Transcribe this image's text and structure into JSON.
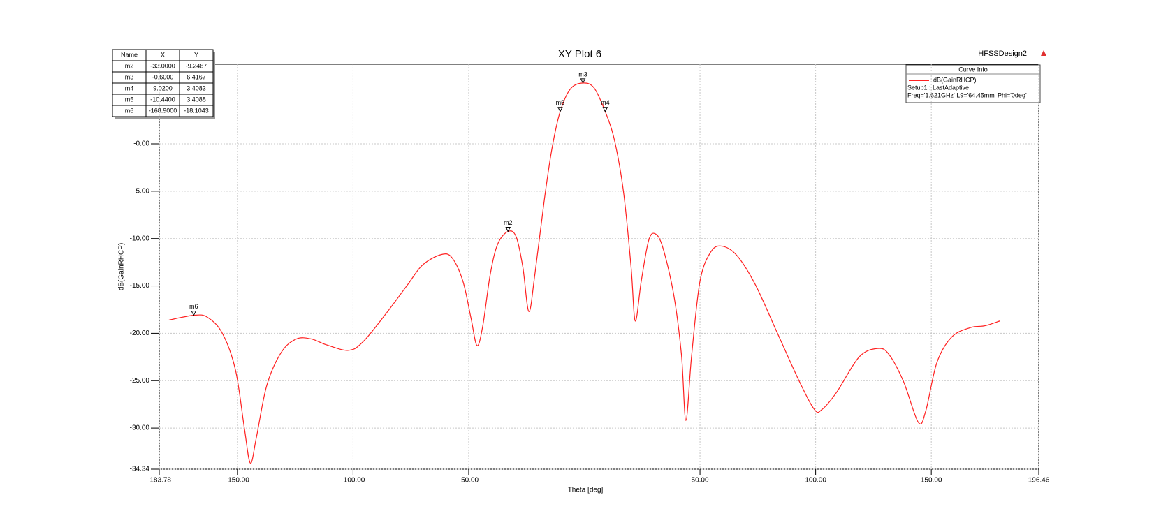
{
  "chart_data": {
    "type": "line",
    "title": "XY Plot 6",
    "design": "HFSSDesign2",
    "xlabel": "Theta [deg]",
    "ylabel": "dB(GainRHCP)",
    "xlim": [
      -183.78,
      196.46
    ],
    "ylim": [
      -34.34,
      8.4
    ],
    "xticks": [
      -183.78,
      {
        "value": -150,
        "label": "-150.00"
      },
      {
        "value": -100,
        "label": "-100.00"
      },
      {
        "value": -50,
        "label": "-50.00"
      },
      {
        "value": 50,
        "label": "50.00"
      },
      {
        "value": 100,
        "label": "100.00"
      },
      {
        "value": 150,
        "label": "150.00"
      },
      196.46
    ],
    "yticks": [
      -34.34,
      {
        "value": -30,
        "label": "-30.00"
      },
      {
        "value": -25,
        "label": "-25.00"
      },
      {
        "value": -20,
        "label": "-20.00"
      },
      {
        "value": -15,
        "label": "-15.00"
      },
      {
        "value": -10,
        "label": "-10.00"
      },
      {
        "value": -5,
        "label": "-5.00"
      },
      {
        "value": 0,
        "label": "-0.00"
      }
    ],
    "grid": true,
    "x": [
      -179.6,
      -168.9,
      -163,
      -156.5,
      -150.8,
      -147,
      -144.4,
      -141.8,
      -137.3,
      -131,
      -124.5,
      -118,
      -111.7,
      -102,
      -95.7,
      -86,
      -76.5,
      -70,
      -62,
      -57.3,
      -52.5,
      -49,
      -46.4,
      -43.9,
      -40.7,
      -37.5,
      -33,
      -29.5,
      -26.6,
      -24,
      -21.4,
      -17.3,
      -14,
      -10.44,
      -6,
      -0.6,
      4.2,
      9.02,
      13.1,
      17,
      20.2,
      22,
      24.6,
      27.8,
      30.7,
      34,
      38.7,
      42,
      43.9,
      46.4,
      50,
      54.7,
      59.5,
      66,
      74,
      83.5,
      93,
      99.5,
      102.7,
      109,
      118.8,
      126.8,
      131.6,
      138,
      144.4,
      147.6,
      152.4,
      158.8,
      166.8,
      173.2,
      179.6
    ],
    "series": [
      {
        "name": "dB(GainRHCP)",
        "color": "#ff2020",
        "values": [
          -18.6,
          -18.1,
          -18.3,
          -20,
          -23.9,
          -30,
          -33.7,
          -31,
          -25.5,
          -22,
          -20.6,
          -20.6,
          -21.2,
          -21.8,
          -20.9,
          -18,
          -14.9,
          -12.8,
          -11.7,
          -12,
          -14.5,
          -18.4,
          -21.3,
          -19.2,
          -13.8,
          -10.6,
          -9.25,
          -9.8,
          -13,
          -17.7,
          -13.8,
          -5.9,
          -0.5,
          3.41,
          5.8,
          6.42,
          5.9,
          3.41,
          0.3,
          -5.2,
          -13,
          -18.7,
          -14.5,
          -10.2,
          -9.5,
          -11,
          -16,
          -22.3,
          -29.2,
          -22.3,
          -14.5,
          -11.4,
          -10.8,
          -11.8,
          -14.9,
          -20,
          -25.1,
          -28.05,
          -28.05,
          -26.25,
          -22.5,
          -21.6,
          -22.2,
          -25.1,
          -29.4,
          -28.2,
          -23.1,
          -20.4,
          -19.4,
          -19.2,
          -18.7
        ]
      }
    ],
    "curve_info": {
      "title": "Curve Info",
      "setup": "Setup1 : LastAdaptive",
      "params": "Freq='1.621GHz' L9='64.45mm' Phi='0deg'"
    },
    "marker_table": {
      "headers": [
        "Name",
        "X",
        "Y"
      ]
    },
    "markers": [
      {
        "name": "m2",
        "x": {
          "value": -33,
          "label": "-33.0000"
        },
        "y": -9.2467
      },
      {
        "name": "m3",
        "x": {
          "value": -0.6,
          "label": "-0.6000"
        },
        "y": 6.4167
      },
      {
        "name": "m4",
        "x": {
          "value": 9.02,
          "label": "9.0200"
        },
        "y": 3.4083
      },
      {
        "name": "m5",
        "x": {
          "value": -10.44,
          "label": "-10.4400"
        },
        "y": 3.4088
      },
      {
        "name": "m6",
        "x": {
          "value": -168.9,
          "label": "-168.9000"
        },
        "y": -18.1043
      }
    ]
  }
}
